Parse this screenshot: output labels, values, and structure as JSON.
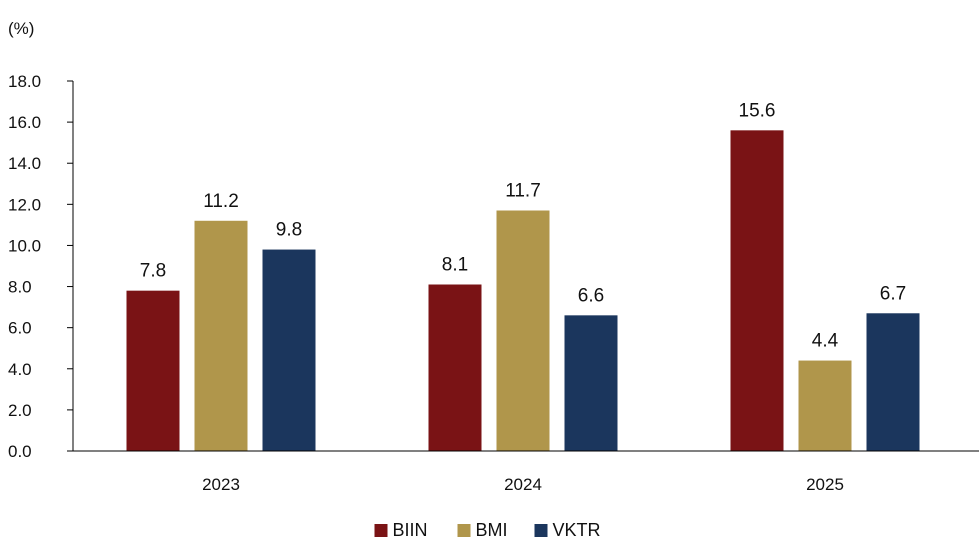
{
  "chart_data": {
    "type": "bar",
    "unit_label": "(%)",
    "categories": [
      "2023",
      "2024",
      "2025"
    ],
    "series": [
      {
        "name": "BIIN",
        "color": "#7A1315",
        "values": [
          7.8,
          8.1,
          15.6
        ],
        "labels": [
          "7.8",
          "8.1",
          "15.6"
        ]
      },
      {
        "name": "BMI",
        "color": "#B0964B",
        "values": [
          11.2,
          11.7,
          4.4
        ],
        "labels": [
          "11.2",
          "11.7",
          "4.4"
        ]
      },
      {
        "name": "VKTR",
        "color": "#1B365D",
        "values": [
          9.8,
          6.6,
          6.7
        ],
        "labels": [
          "9.8",
          "6.6",
          "6.7"
        ]
      }
    ],
    "ylim": [
      0,
      18
    ],
    "yticks": [
      "0.0",
      "2.0",
      "4.0",
      "6.0",
      "8.0",
      "10.0",
      "12.0",
      "14.0",
      "16.0",
      "18.0"
    ],
    "grid": false,
    "legend_position": "bottom"
  }
}
